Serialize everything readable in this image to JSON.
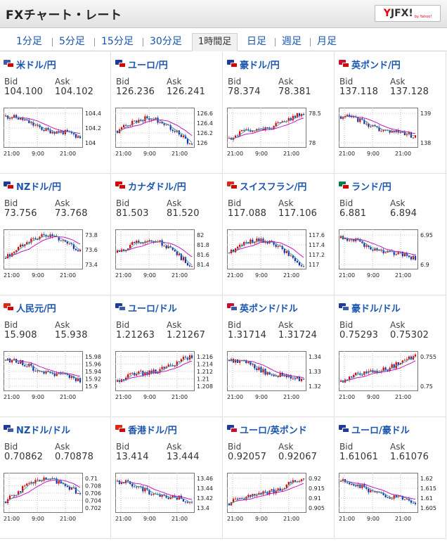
{
  "header": {
    "title": "FXチャート・レート",
    "logo_y": "Y",
    "logo_fx": "JFX!",
    "logo_sub": "by Yahoo!"
  },
  "tabs": [
    {
      "label": "1分足",
      "active": false
    },
    {
      "label": "5分足",
      "active": false
    },
    {
      "label": "15分足",
      "active": false
    },
    {
      "label": "30分足",
      "active": false
    },
    {
      "label": "1時間足",
      "active": true
    },
    {
      "label": "日足",
      "active": false
    },
    {
      "label": "週足",
      "active": false
    },
    {
      "label": "月足",
      "active": false
    }
  ],
  "labels": {
    "bid": "Bid",
    "ask": "Ask"
  },
  "x_labels": [
    "21:00",
    "9:00",
    "21:00"
  ],
  "pairs": [
    {
      "name": "米ドル/円",
      "bid": "104.100",
      "ask": "104.102",
      "flags": [
        "#3c5ba8",
        "#d60000"
      ],
      "y_ticks": [
        "104.4",
        "104.2",
        "104"
      ],
      "trend": "down"
    },
    {
      "name": "ユーロ/円",
      "bid": "126.236",
      "ask": "126.241",
      "flags": [
        "#1e3b9a",
        "#d60000"
      ],
      "y_ticks": [
        "126.6",
        "126.4",
        "126.2",
        "126"
      ],
      "trend": "humpdown"
    },
    {
      "name": "豪ドル/円",
      "bid": "78.374",
      "ask": "78.381",
      "flags": [
        "#1e3b9a",
        "#d60000"
      ],
      "y_ticks": [
        "78.5",
        "78"
      ],
      "trend": "up"
    },
    {
      "name": "英ポンド/円",
      "bid": "137.118",
      "ask": "137.128",
      "flags": [
        "#c8102e",
        "#d60000"
      ],
      "y_ticks": [
        "139",
        "138"
      ],
      "trend": "down"
    },
    {
      "name": "NZドル/円",
      "bid": "73.756",
      "ask": "73.768",
      "flags": [
        "#1e3b9a",
        "#d60000"
      ],
      "y_ticks": [
        "73.8",
        "73.6",
        "73.4"
      ],
      "trend": "hump"
    },
    {
      "name": "カナダドル/円",
      "bid": "81.503",
      "ask": "81.520",
      "flags": [
        "#d60000",
        "#d60000"
      ],
      "y_ticks": [
        "82",
        "81.8",
        "81.6",
        "81.4"
      ],
      "trend": "humpdown"
    },
    {
      "name": "スイスフラン/円",
      "bid": "117.088",
      "ask": "117.106",
      "flags": [
        "#d52b1e",
        "#d60000"
      ],
      "y_ticks": [
        "117.6",
        "117.4",
        "117.2",
        "117"
      ],
      "trend": "humpdown"
    },
    {
      "name": "ランド/円",
      "bid": "6.881",
      "ask": "6.894",
      "flags": [
        "#007a4d",
        "#d60000"
      ],
      "y_ticks": [
        "6.95",
        "6.9"
      ],
      "trend": "down"
    },
    {
      "name": "人民元/円",
      "bid": "15.908",
      "ask": "15.938",
      "flags": [
        "#de2910",
        "#d60000"
      ],
      "y_ticks": [
        "15.98",
        "15.96",
        "15.94",
        "15.92",
        "15.9"
      ],
      "trend": "down"
    },
    {
      "name": "ユーロ/ドル",
      "bid": "1.21263",
      "ask": "1.21267",
      "flags": [
        "#1e3b9a",
        "#3c5ba8"
      ],
      "y_ticks": [
        "1.216",
        "1.214",
        "1.212",
        "1.21",
        "1.208"
      ],
      "trend": "up"
    },
    {
      "name": "英ポンド/ドル",
      "bid": "1.31714",
      "ask": "1.31724",
      "flags": [
        "#c8102e",
        "#3c5ba8"
      ],
      "y_ticks": [
        "1.34",
        "1.33",
        "1.32"
      ],
      "trend": "down"
    },
    {
      "name": "豪ドル/ドル",
      "bid": "0.75293",
      "ask": "0.75302",
      "flags": [
        "#1e3b9a",
        "#3c5ba8"
      ],
      "y_ticks": [
        "0.755",
        "0.75"
      ],
      "trend": "up"
    },
    {
      "name": "NZドル/ドル",
      "bid": "0.70862",
      "ask": "0.70878",
      "flags": [
        "#1e3b9a",
        "#3c5ba8"
      ],
      "y_ticks": [
        "0.71",
        "0.708",
        "0.706",
        "0.704",
        "0.702"
      ],
      "trend": "hump"
    },
    {
      "name": "香港ドル/円",
      "bid": "13.414",
      "ask": "13.444",
      "flags": [
        "#de2910",
        "#d60000"
      ],
      "y_ticks": [
        "13.46",
        "13.44",
        "13.42",
        "13.4"
      ],
      "trend": "down"
    },
    {
      "name": "ユーロ/英ポンド",
      "bid": "0.92057",
      "ask": "0.92067",
      "flags": [
        "#1e3b9a",
        "#c8102e"
      ],
      "y_ticks": [
        "0.92",
        "0.915",
        "0.91",
        "0.905"
      ],
      "trend": "up"
    },
    {
      "name": "ユーロ/豪ドル",
      "bid": "1.61061",
      "ask": "1.61076",
      "flags": [
        "#1e3b9a",
        "#1e3b9a"
      ],
      "y_ticks": [
        "1.62",
        "1.615",
        "1.61",
        "1.605"
      ],
      "trend": "down"
    }
  ],
  "colors": {
    "up": "#d60000",
    "down": "#1a2ea8",
    "ma1": "#c000c0",
    "ma2": "#3aa0a0",
    "link": "#1a55b0"
  }
}
